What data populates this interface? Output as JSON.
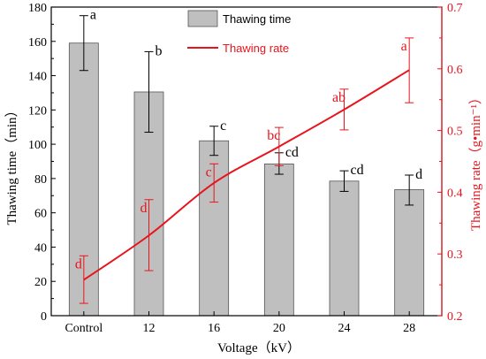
{
  "chart_data": {
    "type": "bar+line",
    "categories": [
      "Control",
      "12",
      "16",
      "20",
      "24",
      "28"
    ],
    "xlabel": "Voltage（kV）",
    "ylabel_left": "Thawing time（min）",
    "ylabel_right": "Thawing rate（g•min⁻¹）",
    "ylim_left": [
      0,
      180
    ],
    "ylim_right": [
      0.2,
      0.7
    ],
    "yticks_left": [
      0,
      20,
      40,
      60,
      80,
      100,
      120,
      140,
      160,
      180
    ],
    "yticks_right": [
      0.2,
      0.3,
      0.4,
      0.5,
      0.6,
      0.7
    ],
    "yticks_right_labels": [
      "0.2",
      "0.3",
      "0.4",
      "0.5",
      "0.6",
      "0.7"
    ],
    "legend": {
      "placement": "top-center",
      "bar_label": "Thawing time",
      "line_label": "Thawing rate"
    },
    "bar_series": {
      "name": "Thawing time",
      "values": [
        159,
        130.5,
        102,
        88.5,
        78.5,
        73.5
      ],
      "err_high": [
        175,
        154,
        110.5,
        95,
        84.5,
        82
      ],
      "err_low": [
        143,
        107,
        93.5,
        82.5,
        72.5,
        64.5
      ],
      "sig_labels": [
        "a",
        "b",
        "c",
        "cd",
        "cd",
        "d"
      ],
      "color": "#bfbfbf"
    },
    "line_series": {
      "name": "Thawing rate",
      "values": [
        0.258,
        0.33,
        0.415,
        0.474,
        0.534,
        0.598
      ],
      "err_high": [
        0.297,
        0.388,
        0.446,
        0.505,
        0.567,
        0.65
      ],
      "err_low": [
        0.22,
        0.273,
        0.384,
        0.443,
        0.501,
        0.545
      ],
      "sig_labels": [
        "d",
        "d",
        "c",
        "bc",
        "ab",
        "a"
      ],
      "color": "#e8141c"
    }
  }
}
